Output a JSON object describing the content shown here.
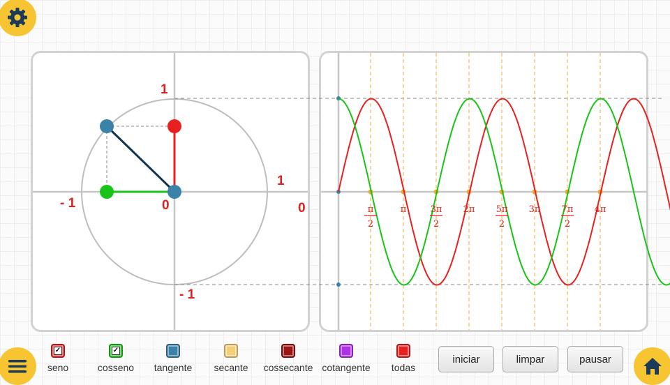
{
  "unit_circle": {
    "label_top": "1",
    "label_right": "1",
    "label_left": "- 1",
    "label_bottom": "- 1",
    "label_origin": "0",
    "label_right_outer": "0"
  },
  "graph": {
    "ticks": [
      "π/2",
      "π",
      "3π/2",
      "2π",
      "5π/2",
      "3π",
      "7π/2",
      "4π"
    ],
    "tick_parts": [
      {
        "num": "π",
        "den": "2"
      },
      {
        "num": "π",
        "den": ""
      },
      {
        "num": "3π",
        "den": "2"
      },
      {
        "num": "2π",
        "den": ""
      },
      {
        "num": "5π",
        "den": "2"
      },
      {
        "num": "3π",
        "den": ""
      },
      {
        "num": "7π",
        "den": "2"
      },
      {
        "num": "4π",
        "den": ""
      }
    ]
  },
  "legend": [
    {
      "label": "seno",
      "color": "#e82020",
      "checked": true
    },
    {
      "label": "cosseno",
      "color": "#18c418",
      "checked": true
    },
    {
      "label": "tangente",
      "color": "#3a82a8",
      "checked": false
    },
    {
      "label": "secante",
      "color": "#f5cf78",
      "checked": false
    },
    {
      "label": "cossecante",
      "color": "#9c1414",
      "checked": false
    },
    {
      "label": "cotangente",
      "color": "#b030e8",
      "checked": false
    },
    {
      "label": "todas",
      "color": "#e82020",
      "checked": false
    }
  ],
  "buttons": {
    "start": "iniciar",
    "clear": "limpar",
    "pause": "pausar"
  },
  "colors": {
    "accent": "#f7c531",
    "sine": "#e82020",
    "cosine": "#18c418",
    "point": "#3a82a8",
    "guide": "#f0a830",
    "icon": "#1c3a5a"
  },
  "icons": {
    "settings": "gear-icon",
    "menu": "menu-icon",
    "home": "home-icon"
  }
}
